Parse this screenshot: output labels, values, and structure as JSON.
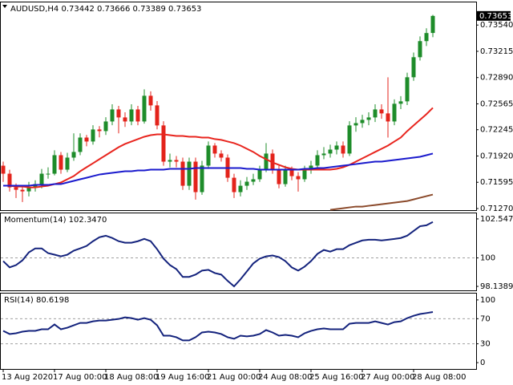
{
  "chart_data": [
    {
      "type": "candlestick",
      "title": "AUDUSD,H4  0.73442 0.73666 0.73389 0.73653",
      "categories": [
        "13 Aug 2020",
        null,
        null,
        null,
        null,
        null,
        null,
        null,
        "17 Aug 00:00",
        null,
        null,
        null,
        null,
        null,
        null,
        null,
        "18 Aug 08:00",
        null,
        null,
        null,
        null,
        null,
        null,
        null,
        "19 Aug 16:00",
        null,
        null,
        null,
        null,
        null,
        null,
        null,
        "21 Aug 00:00",
        null,
        null,
        null,
        null,
        null,
        null,
        null,
        "24 Aug 08:00",
        null,
        null,
        null,
        null,
        null,
        null,
        null,
        "25 Aug 16:00",
        null,
        null,
        null,
        null,
        null,
        null,
        null,
        "27 Aug 00:00",
        null,
        null,
        null,
        null,
        null,
        null,
        null,
        "28 Aug 08:00",
        null,
        null,
        null
      ],
      "open": [
        0.718,
        0.71701,
        0.71532,
        0.71502,
        0.71482,
        0.71532,
        0.71572,
        0.71701,
        0.71701,
        0.7193,
        0.71751,
        0.719,
        0.7197,
        0.72148,
        0.72099,
        0.72248,
        0.72228,
        0.72347,
        0.72496,
        0.72397,
        0.72347,
        0.72496,
        0.72347,
        0.72665,
        0.72546,
        0.72298,
        0.7185,
        0.7187,
        0.7185,
        0.71552,
        0.7185,
        0.71473,
        0.71801,
        0.72049,
        0.7195,
        0.719,
        0.71651,
        0.71473,
        0.71552,
        0.71602,
        0.71632,
        0.71751,
        0.7195,
        0.71751,
        0.71572,
        0.71751,
        0.71671,
        0.71632,
        0.71751,
        0.71801,
        0.7193,
        0.7195,
        0.71999,
        0.72049,
        0.7195,
        0.72298,
        0.72327,
        0.72367,
        0.72397,
        0.72496,
        0.72447,
        0.72347,
        0.72566,
        0.72596,
        0.72894,
        0.73142,
        0.73341,
        0.73442
      ],
      "high": [
        0.7185,
        0.7175,
        0.7158,
        0.7156,
        0.716,
        0.7162,
        0.7176,
        0.7178,
        0.7199,
        0.7197,
        0.7196,
        0.722,
        0.722,
        0.7218,
        0.723,
        0.7229,
        0.724,
        0.7256,
        0.7254,
        0.7246,
        0.7256,
        0.7254,
        0.72745,
        0.7272,
        0.726,
        0.7235,
        0.7195,
        0.7192,
        0.719,
        0.719,
        0.719,
        0.7186,
        0.721,
        0.7208,
        0.7199,
        0.7194,
        0.717,
        0.7162,
        0.7166,
        0.717,
        0.718,
        0.7208,
        0.72,
        0.718,
        0.718,
        0.7179,
        0.7172,
        0.718,
        0.7186,
        0.7199,
        0.7203,
        0.7206,
        0.721,
        0.721,
        0.7235,
        0.724,
        0.7243,
        0.7246,
        0.7256,
        0.7256,
        0.72894,
        0.7262,
        0.7266,
        0.7295,
        0.732,
        0.734,
        0.735,
        0.73666
      ],
      "low": [
        0.716,
        0.7148,
        0.714,
        0.7135,
        0.7142,
        0.7148,
        0.7152,
        0.7164,
        0.7168,
        0.717,
        0.7172,
        0.7186,
        0.7193,
        0.7204,
        0.7206,
        0.7215,
        0.7218,
        0.723,
        0.722,
        0.7228,
        0.723,
        0.723,
        0.7232,
        0.7248,
        0.7225,
        0.718,
        0.7178,
        0.7178,
        0.715,
        0.715,
        0.7138,
        0.7144,
        0.7176,
        0.719,
        0.7185,
        0.716,
        0.714,
        0.7142,
        0.715,
        0.7156,
        0.716,
        0.7172,
        0.717,
        0.7152,
        0.7154,
        0.7162,
        0.7148,
        0.716,
        0.717,
        0.7176,
        0.7188,
        0.719,
        0.7194,
        0.719,
        0.7192,
        0.7222,
        0.7227,
        0.723,
        0.7234,
        0.7238,
        0.72148,
        0.723,
        0.725,
        0.7255,
        0.7285,
        0.731,
        0.7328,
        0.73389
      ],
      "close": [
        0.71701,
        0.71532,
        0.71502,
        0.71482,
        0.71532,
        0.71572,
        0.71701,
        0.71701,
        0.7193,
        0.71751,
        0.719,
        0.7197,
        0.72148,
        0.72099,
        0.72248,
        0.72228,
        0.72347,
        0.72496,
        0.72397,
        0.72347,
        0.72496,
        0.72347,
        0.72665,
        0.72546,
        0.72298,
        0.7185,
        0.7187,
        0.7185,
        0.71552,
        0.7185,
        0.71473,
        0.71801,
        0.72049,
        0.7195,
        0.719,
        0.71651,
        0.71473,
        0.71552,
        0.71602,
        0.71632,
        0.71751,
        0.7195,
        0.71751,
        0.71572,
        0.71751,
        0.71671,
        0.71632,
        0.71751,
        0.71801,
        0.7193,
        0.7195,
        0.71999,
        0.72049,
        0.7195,
        0.72298,
        0.72327,
        0.72367,
        0.72397,
        0.72496,
        0.72447,
        0.72347,
        0.72566,
        0.72596,
        0.72894,
        0.73142,
        0.73341,
        0.73441,
        0.73653
      ],
      "up_color": "#1e8c2a",
      "down_color": "#e3231b",
      "series": [
        {
          "color": "#e8251e",
          "values": [
            0.71552,
            0.71552,
            0.71542,
            0.71542,
            0.71532,
            0.71532,
            0.71542,
            0.71552,
            0.71572,
            0.71592,
            0.71632,
            0.71671,
            0.71731,
            0.71781,
            0.7183,
            0.7188,
            0.7193,
            0.71979,
            0.72029,
            0.72069,
            0.72099,
            0.72129,
            0.72158,
            0.72178,
            0.72188,
            0.72188,
            0.72178,
            0.72168,
            0.72168,
            0.72158,
            0.72158,
            0.72148,
            0.72148,
            0.72129,
            0.72119,
            0.72099,
            0.72079,
            0.72049,
            0.72009,
            0.7197,
            0.7192,
            0.7188,
            0.7184,
            0.7181,
            0.71781,
            0.71761,
            0.71751,
            0.71751,
            0.71751,
            0.71751,
            0.71751,
            0.71751,
            0.71761,
            0.71781,
            0.7181,
            0.7185,
            0.7189,
            0.7193,
            0.7197,
            0.72009,
            0.72049,
            0.72099,
            0.72148,
            0.72228,
            0.72298,
            0.72367,
            0.72437,
            0.72516
          ]
        },
        {
          "color": "#1a1acd",
          "values": [
            0.71552,
            0.71552,
            0.71552,
            0.71552,
            0.71552,
            0.71562,
            0.71562,
            0.71562,
            0.71572,
            0.71572,
            0.71592,
            0.71612,
            0.71632,
            0.71651,
            0.71671,
            0.71691,
            0.71701,
            0.71711,
            0.71721,
            0.71731,
            0.71731,
            0.71741,
            0.71741,
            0.71751,
            0.71751,
            0.71751,
            0.71761,
            0.71761,
            0.71761,
            0.71761,
            0.71771,
            0.71771,
            0.71771,
            0.71771,
            0.71771,
            0.71771,
            0.71771,
            0.71771,
            0.71761,
            0.71761,
            0.71751,
            0.71751,
            0.71751,
            0.71751,
            0.71751,
            0.71751,
            0.71751,
            0.71761,
            0.71761,
            0.71771,
            0.71771,
            0.71781,
            0.71791,
            0.71801,
            0.7181,
            0.7182,
            0.7183,
            0.7184,
            0.7185,
            0.7185,
            0.7186,
            0.7187,
            0.7188,
            0.7189,
            0.719,
            0.7191,
            0.7193,
            0.7195
          ]
        },
        {
          "color": "#8b4a2b",
          "values": [
            null,
            null,
            null,
            null,
            null,
            null,
            null,
            null,
            null,
            null,
            null,
            null,
            null,
            null,
            null,
            null,
            null,
            null,
            null,
            null,
            null,
            null,
            null,
            null,
            null,
            null,
            null,
            null,
            null,
            null,
            null,
            null,
            null,
            null,
            null,
            null,
            null,
            null,
            null,
            null,
            null,
            null,
            null,
            null,
            null,
            null,
            null,
            null,
            null,
            null,
            null,
            0.71254,
            0.71264,
            0.71274,
            0.71284,
            0.71294,
            0.71294,
            0.71304,
            0.71313,
            0.71323,
            0.71333,
            0.71343,
            0.71353,
            0.71363,
            0.71383,
            0.71403,
            0.71423,
            0.71443
          ]
        }
      ],
      "ylim": [
        0.7125,
        0.7382
      ],
      "yticks": [
        {
          "value": 0.7354,
          "label": "0.73540"
        },
        0.73215,
        {
          "value": 0.7289,
          "label": "0.72890"
        },
        0.72565,
        0.72245,
        {
          "value": 0.7192,
          "label": "0.71920"
        },
        0.71595,
        {
          "value": 0.7127,
          "label": "0.71270"
        }
      ]
    },
    {
      "type": "line",
      "title": "Momentum(14) 102.3470",
      "color": "#14237d",
      "values": [
        99.79,
        99.38,
        99.53,
        99.84,
        100.36,
        100.62,
        100.62,
        100.31,
        100.21,
        100.1,
        100.21,
        100.47,
        100.62,
        100.78,
        101.09,
        101.35,
        101.45,
        101.3,
        101.09,
        100.99,
        100.99,
        101.09,
        101.24,
        101.09,
        100.57,
        99.95,
        99.53,
        99.27,
        98.76,
        98.76,
        98.91,
        99.17,
        99.22,
        99.01,
        98.91,
        98.5,
        98.14,
        98.6,
        99.12,
        99.64,
        99.95,
        100.1,
        100.16,
        100.05,
        99.79,
        99.38,
        99.17,
        99.43,
        99.79,
        100.26,
        100.52,
        100.41,
        100.57,
        100.57,
        100.83,
        100.99,
        101.14,
        101.19,
        101.19,
        101.14,
        101.19,
        101.24,
        101.3,
        101.45,
        101.76,
        102.07,
        102.13,
        102.347
      ],
      "ylim": [
        97.88,
        102.91
      ],
      "yticks": [
        102.5474,
        100,
        98.1389
      ],
      "levels": [
        100
      ]
    },
    {
      "type": "line",
      "title": "RSI(14) 80.6198",
      "color": "#14237d",
      "values": [
        50.6,
        45.6,
        46.8,
        49.4,
        50.6,
        50.6,
        53.2,
        53.2,
        60.8,
        53.2,
        55.7,
        59.5,
        63.3,
        63.3,
        65.8,
        67.1,
        67.1,
        68.4,
        69.6,
        72.2,
        70.9,
        68.4,
        70.9,
        68.4,
        59.5,
        43,
        43,
        40.5,
        35.4,
        35.4,
        40.5,
        48.1,
        49.4,
        48.1,
        45.6,
        40.5,
        38,
        43,
        41.8,
        43,
        45.6,
        51.9,
        48.1,
        43,
        44.3,
        43,
        40.5,
        46.8,
        50.6,
        53.2,
        54.4,
        53.2,
        53.2,
        53.2,
        62,
        63.3,
        63.3,
        63.3,
        65.8,
        63.3,
        60.8,
        64.6,
        65.8,
        70.9,
        74.7,
        77.5,
        79,
        80.6198
      ],
      "ylim": [
        -10.1,
        110.1
      ],
      "yticks": [
        100,
        70,
        30,
        0
      ],
      "levels": [
        70,
        30
      ]
    }
  ]
}
